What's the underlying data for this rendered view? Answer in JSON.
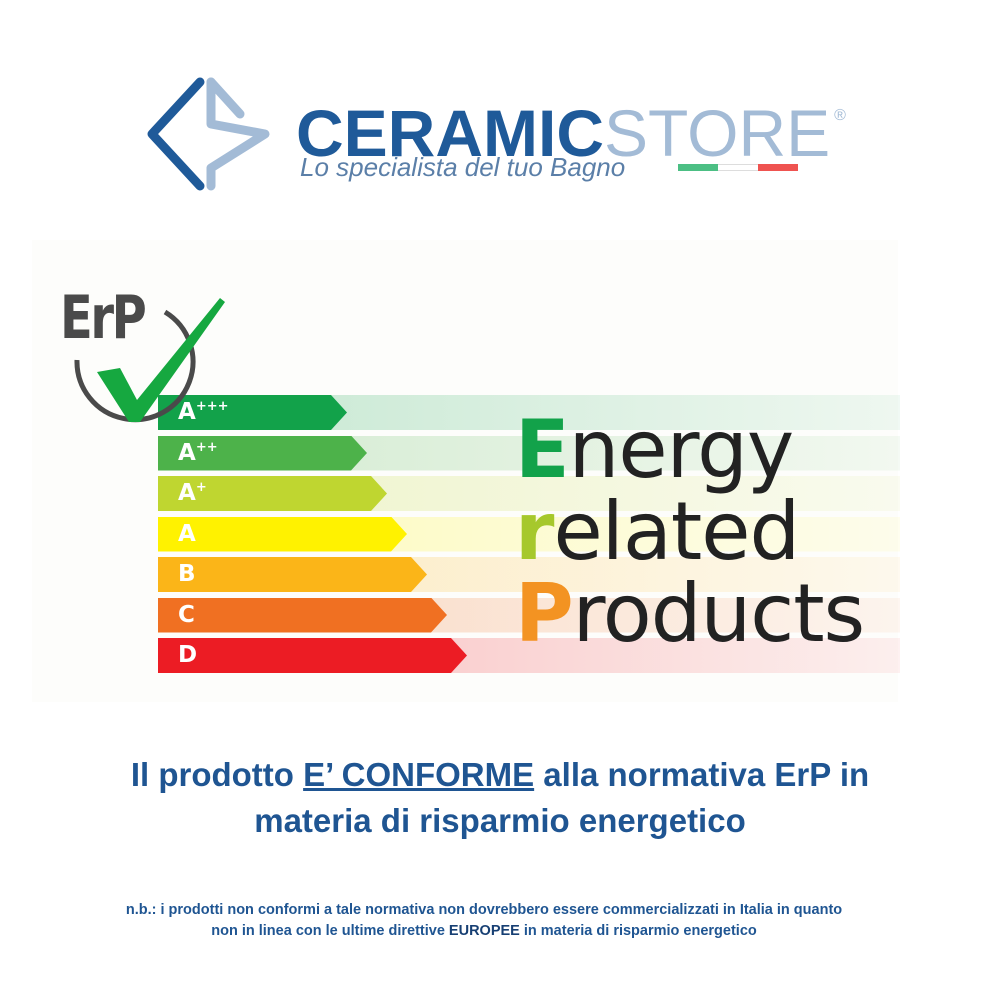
{
  "brand": {
    "name_bold": "CERAMIC",
    "name_light": "STORE",
    "registered": "®",
    "tagline": "Lo specialista del tuo Bagno",
    "flag_colors": [
      "#4cbf84",
      "#ffffff",
      "#ef5350"
    ],
    "primary_color": "#1f5a99",
    "secondary_color": "#a3bbd6"
  },
  "badge": {
    "text": "ErP",
    "icon": "check-icon",
    "check_color": "#16a840"
  },
  "energy_classes": [
    {
      "main": "A",
      "sup": "+++",
      "color": "#12a24a"
    },
    {
      "main": "A",
      "sup": "++",
      "color": "#4db24a"
    },
    {
      "main": "A",
      "sup": "+",
      "color": "#bfd630"
    },
    {
      "main": "A",
      "sup": "",
      "color": "#fff200"
    },
    {
      "main": "B",
      "sup": "",
      "color": "#fbb518"
    },
    {
      "main": "C",
      "sup": "",
      "color": "#f07022"
    },
    {
      "main": "D",
      "sup": "",
      "color": "#ec1c24"
    }
  ],
  "erp_words": [
    {
      "initial": "E",
      "rest": "nergy",
      "color": "#12a24a"
    },
    {
      "initial": "r",
      "rest": "elated",
      "color": "#a6c82c"
    },
    {
      "initial": "P",
      "rest": "roducts",
      "color": "#f39322"
    }
  ],
  "headline": {
    "before": "Il prodotto ",
    "underlined": "E’ CONFORME",
    "after": " alla normativa ErP in",
    "line2": "materia di risparmio energetico"
  },
  "note": {
    "line1": "n.b.: i prodotti non conformi a tale normativa non dovrebbero essere commercializzati in Italia in quanto",
    "line2_before": "non in linea con le ultime direttive ",
    "line2_bold": "EUROPEE",
    "line2_after": " in materia di risparmio energetico"
  }
}
